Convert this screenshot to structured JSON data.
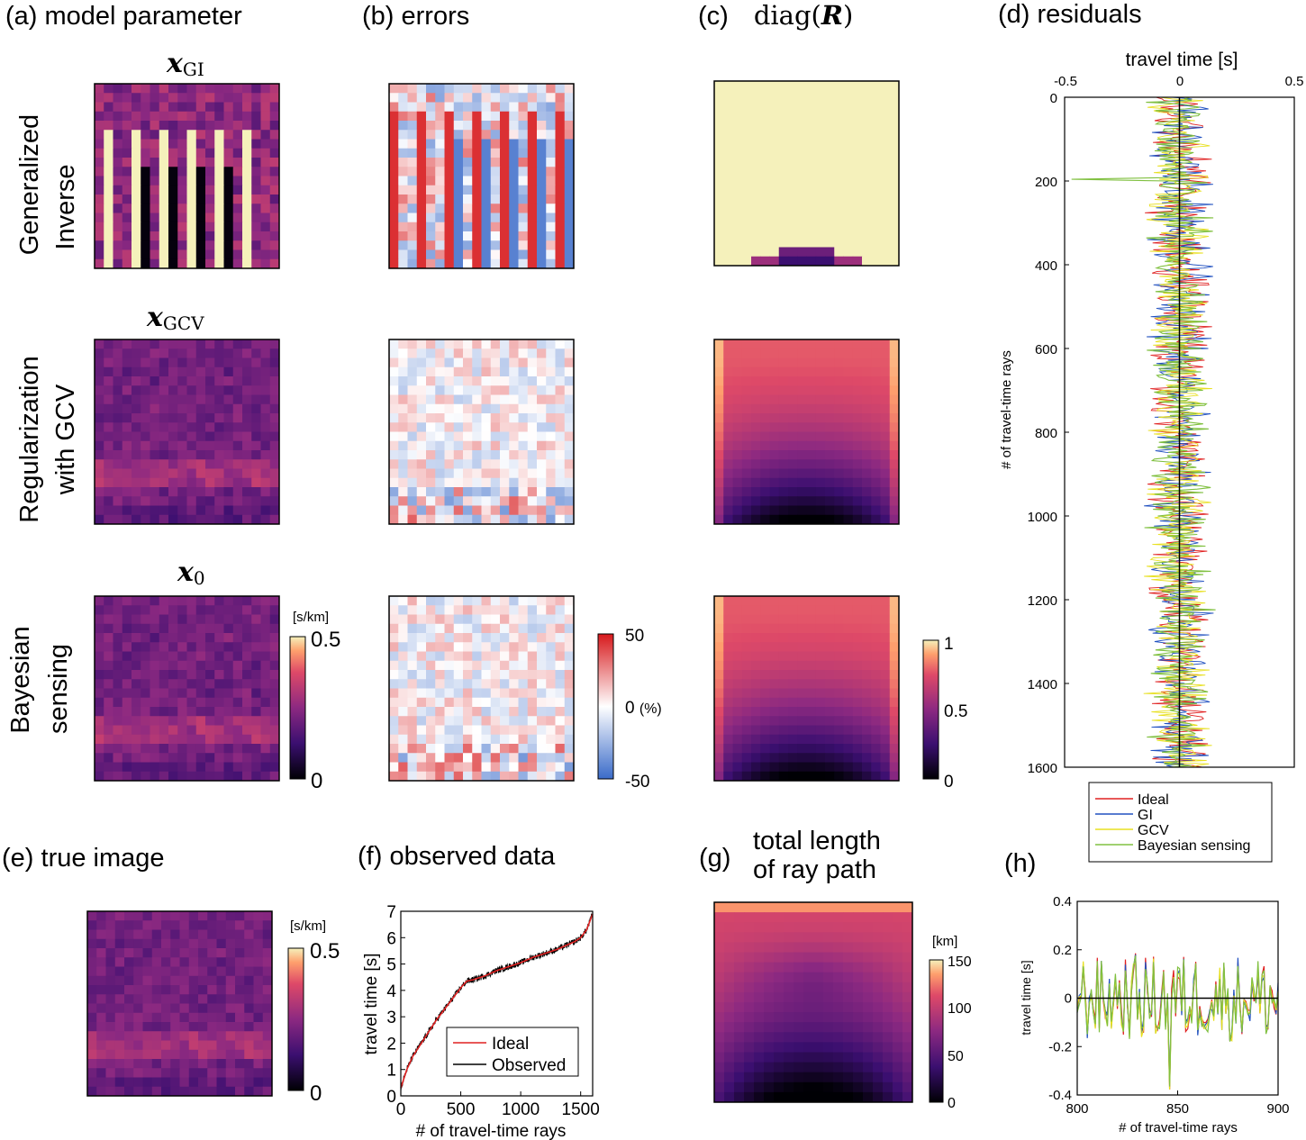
{
  "panels": {
    "a": {
      "letter": "(a)",
      "title": "model parameter"
    },
    "b": {
      "letter": "(b)",
      "title": "errors"
    },
    "c": {
      "letter": "(c)",
      "title_func": "diag(",
      "title_var": "R",
      "title_close": ")"
    },
    "d": {
      "letter": "(d)",
      "title": "residuals"
    },
    "e": {
      "letter": "(e)",
      "title": "true image"
    },
    "f": {
      "letter": "(f)",
      "title": "observed data"
    },
    "g": {
      "letter": "(g)",
      "title_line1": "total length",
      "title_line2": "of ray path"
    },
    "h": {
      "letter": "(h)"
    }
  },
  "rows": [
    {
      "label_line1": "Generalized",
      "label_line2": "Inverse",
      "var": "x",
      "sub": "GI"
    },
    {
      "label_line1": "Regularization",
      "label_line2": "with GCV",
      "var": "x",
      "sub": "GCV"
    },
    {
      "label_line1": "Bayesian",
      "label_line2": "sensing",
      "var": "x",
      "sub": "0"
    }
  ],
  "colorbars": {
    "model": {
      "unit": "[s/km]",
      "max": "0.5",
      "min": "0"
    },
    "errors": {
      "max": "50",
      "mid": "0",
      "mid_unit": "(%)",
      "min": "-50"
    },
    "diag": {
      "max": "1",
      "mid": "0.5",
      "min": "0"
    },
    "true": {
      "unit": "[s/km]",
      "max": "0.5",
      "min": "0"
    },
    "length": {
      "unit": "[km]",
      "ticks": [
        "150",
        "100",
        "50",
        "0"
      ]
    }
  },
  "colors": {
    "ideal": "#e02020",
    "observed": "#000000",
    "gi": "#2050c0",
    "gcv": "#e8e020",
    "bayes": "#80c040",
    "error_pos": "#d7191c",
    "error_neg": "#3a6bc9"
  },
  "chart_data": [
    {
      "id": "d",
      "type": "line",
      "orientation": "horizontal-values",
      "xlabel": "travel time [s]",
      "ylabel": "# of travel-time rays",
      "xlim": [
        -0.5,
        0.5
      ],
      "ylim": [
        0,
        1600
      ],
      "xticks": [
        "-0.5",
        "0",
        "0.5"
      ],
      "yticks": [
        "0",
        "200",
        "400",
        "600",
        "800",
        "1000",
        "1200",
        "1400",
        "1600"
      ],
      "legend_position": "bottom-outside",
      "legend": [
        "Ideal",
        "GI",
        "GCV",
        "Bayesian sensing"
      ],
      "series": [
        {
          "name": "Ideal",
          "amplitude": 0.1
        },
        {
          "name": "GI",
          "amplitude": 0.1
        },
        {
          "name": "GCV",
          "amplitude": 0.1
        },
        {
          "name": "Bayesian sensing",
          "amplitude": 0.1
        }
      ]
    },
    {
      "id": "f",
      "type": "line",
      "xlabel": "# of travel-time rays",
      "ylabel": "travel time [s]",
      "xlim": [
        0,
        1600
      ],
      "ylim": [
        0,
        7
      ],
      "xticks": [
        "0",
        "500",
        "1000",
        "1500"
      ],
      "yticks": [
        "0",
        "1",
        "2",
        "3",
        "4",
        "5",
        "6",
        "7"
      ],
      "legend_position": "bottom-right",
      "legend": [
        "Ideal",
        "Observed"
      ],
      "series": [
        {
          "name": "Ideal",
          "x": [
            0,
            50,
            100,
            200,
            300,
            400,
            500,
            550,
            600,
            700,
            800,
            900,
            1000,
            1100,
            1200,
            1300,
            1400,
            1450,
            1500,
            1550,
            1600
          ],
          "y": [
            0.3,
            1.0,
            1.5,
            2.2,
            2.9,
            3.5,
            4.1,
            4.35,
            4.4,
            4.55,
            4.75,
            4.9,
            5.05,
            5.25,
            5.4,
            5.55,
            5.75,
            5.85,
            6.0,
            6.3,
            6.9
          ]
        },
        {
          "name": "Observed",
          "noise": 0.12
        }
      ]
    },
    {
      "id": "h",
      "type": "line",
      "xlabel": "# of travel-time rays",
      "ylabel": "travel time [s]",
      "xlim": [
        800,
        900
      ],
      "ylim": [
        -0.4,
        0.4
      ],
      "xticks": [
        "800",
        "850",
        "900"
      ],
      "yticks": [
        "0.4",
        "0.2",
        "0",
        "-0.2",
        "-0.4"
      ],
      "series": [
        {
          "name": "Ideal"
        },
        {
          "name": "GI"
        },
        {
          "name": "GCV"
        },
        {
          "name": "Bayesian sensing"
        }
      ]
    }
  ]
}
